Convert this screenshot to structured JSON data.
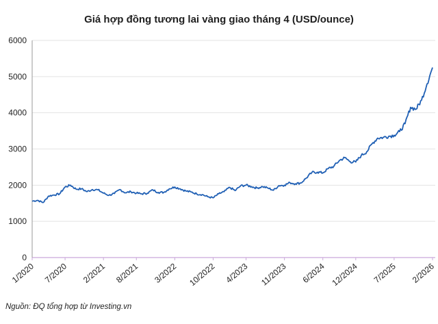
{
  "chart_data": {
    "type": "line",
    "title": "Giá hợp đồng tương lai vàng giao tháng 4 (USD/ounce)",
    "source": "Nguồn: ĐQ tổng hợp từ Investing.vn",
    "xlabel": "",
    "ylabel": "",
    "ylim": [
      0,
      6000
    ],
    "yticks": [
      "0",
      "1000",
      "2000",
      "3000",
      "4000",
      "5000",
      "6000"
    ],
    "xticks": [
      "1/2020",
      "7/2020",
      "2/2021",
      "8/2021",
      "3/2022",
      "10/2022",
      "4/2023",
      "11/2023",
      "6/2024",
      "12/2024",
      "7/2025",
      "2/2026"
    ],
    "grid": "horizontal",
    "legend": "none",
    "colors": {
      "line": "#1f5fb4",
      "axis": "#c9a8d9",
      "grid": "#e3e3e3"
    },
    "series": [
      {
        "x": [
          "2020-01",
          "2020-02",
          "2020-03",
          "2020-04",
          "2020-05",
          "2020-06",
          "2020-07",
          "2020-08",
          "2020-09",
          "2020-10",
          "2020-11",
          "2020-12",
          "2021-01",
          "2021-02",
          "2021-03",
          "2021-04",
          "2021-05",
          "2021-06",
          "2021-07",
          "2021-08",
          "2021-09",
          "2021-10",
          "2021-11",
          "2021-12",
          "2022-01",
          "2022-02",
          "2022-03",
          "2022-04",
          "2022-05",
          "2022-06",
          "2022-07",
          "2022-08",
          "2022-09",
          "2022-10",
          "2022-11",
          "2022-12",
          "2023-01",
          "2023-02",
          "2023-03",
          "2023-04",
          "2023-05",
          "2023-06",
          "2023-07",
          "2023-08",
          "2023-09",
          "2023-10",
          "2023-11",
          "2023-12",
          "2024-01",
          "2024-02",
          "2024-03",
          "2024-04",
          "2024-05",
          "2024-06",
          "2024-07",
          "2024-08",
          "2024-09",
          "2024-10",
          "2024-11",
          "2024-12",
          "2025-01",
          "2025-02",
          "2025-03",
          "2025-04",
          "2025-05",
          "2025-06",
          "2025-07",
          "2025-08",
          "2025-09",
          "2025-10",
          "2025-11",
          "2025-12",
          "2026-01",
          "2026-02"
        ],
        "values": [
          1560,
          1580,
          1520,
          1700,
          1730,
          1760,
          1950,
          2000,
          1890,
          1900,
          1820,
          1880,
          1870,
          1780,
          1720,
          1770,
          1880,
          1790,
          1820,
          1780,
          1760,
          1780,
          1870,
          1800,
          1800,
          1900,
          1950,
          1900,
          1840,
          1810,
          1760,
          1740,
          1680,
          1650,
          1760,
          1820,
          1940,
          1850,
          1980,
          2000,
          1960,
          1920,
          1960,
          1920,
          1860,
          1990,
          2000,
          2070,
          2040,
          2060,
          2200,
          2350,
          2360,
          2340,
          2460,
          2520,
          2680,
          2760,
          2650,
          2640,
          2820,
          2920,
          3150,
          3300,
          3320,
          3350,
          3380,
          3480,
          3700,
          4150,
          4100,
          4350,
          4800,
          5250
        ]
      }
    ]
  }
}
